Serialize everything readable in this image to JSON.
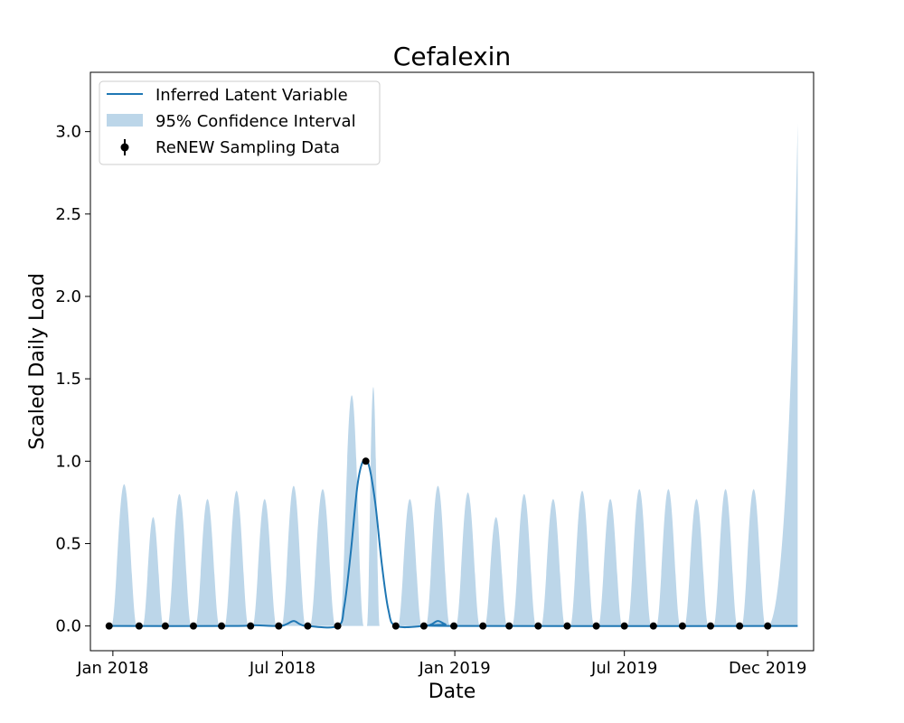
{
  "chart_data": {
    "type": "line",
    "title": "Cefalexin",
    "xlabel": "Date",
    "ylabel": "Scaled Daily Load",
    "x_axis_type": "date",
    "xlim": [
      "2017-12-08",
      "2020-01-19"
    ],
    "ylim": [
      -0.15,
      3.36
    ],
    "x_ticks": [
      {
        "date": "2018-01-01",
        "label": "Jan 2018"
      },
      {
        "date": "2018-07-01",
        "label": "Jul 2018"
      },
      {
        "date": "2019-01-01",
        "label": "Jan 2019"
      },
      {
        "date": "2019-07-01",
        "label": "Jul 2019"
      },
      {
        "date": "2019-12-01",
        "label": "Dec 2019"
      }
    ],
    "y_ticks": [
      {
        "value": 0.0,
        "label": "0.0"
      },
      {
        "value": 0.5,
        "label": "0.5"
      },
      {
        "value": 1.0,
        "label": "1.0"
      },
      {
        "value": 1.5,
        "label": "1.5"
      },
      {
        "value": 2.0,
        "label": "2.0"
      },
      {
        "value": 2.5,
        "label": "2.5"
      },
      {
        "value": 3.0,
        "label": "3.0"
      }
    ],
    "grid": false,
    "legend": {
      "position": "top-left",
      "entries": [
        {
          "label": "Inferred Latent Variable",
          "kind": "line"
        },
        {
          "label": "95% Confidence Interval",
          "kind": "band"
        },
        {
          "label": "ReNEW Sampling Data",
          "kind": "errorbar-point"
        }
      ]
    },
    "colors": {
      "line": "#1f77b4",
      "band": "#bcd6e9",
      "points": "#000000"
    },
    "series": [
      {
        "name": "ReNEW Sampling Data",
        "points": [
          [
            "2017-12-28",
            0
          ],
          [
            "2018-01-29",
            0
          ],
          [
            "2018-02-26",
            0
          ],
          [
            "2018-03-28",
            0
          ],
          [
            "2018-04-27",
            0
          ],
          [
            "2018-05-28",
            0
          ],
          [
            "2018-06-27",
            0
          ],
          [
            "2018-07-28",
            0
          ],
          [
            "2018-08-29",
            0
          ],
          [
            "2018-09-28",
            1.0
          ],
          [
            "2018-10-30",
            0
          ],
          [
            "2018-11-29",
            0
          ],
          [
            "2018-12-31",
            0
          ],
          [
            "2019-01-31",
            0
          ],
          [
            "2019-02-28",
            0
          ],
          [
            "2019-03-31",
            0
          ],
          [
            "2019-05-01",
            0
          ],
          [
            "2019-06-01",
            0
          ],
          [
            "2019-07-01",
            0
          ],
          [
            "2019-08-01",
            0
          ],
          [
            "2019-09-01",
            0
          ],
          [
            "2019-10-01",
            0
          ],
          [
            "2019-11-01",
            0
          ],
          [
            "2019-12-01",
            0
          ]
        ]
      },
      {
        "name": "Inferred Latent Variable",
        "points": [
          [
            "2017-12-28",
            0
          ],
          [
            "2018-05-10",
            0
          ],
          [
            "2018-05-28",
            0.005
          ],
          [
            "2018-06-27",
            0
          ],
          [
            "2018-07-05",
            0.01
          ],
          [
            "2018-07-13",
            0.03
          ],
          [
            "2018-07-20",
            0.01
          ],
          [
            "2018-07-28",
            0
          ],
          [
            "2018-08-29",
            0
          ],
          [
            "2018-09-05",
            0.12
          ],
          [
            "2018-09-12",
            0.45
          ],
          [
            "2018-09-19",
            0.85
          ],
          [
            "2018-09-25",
            1.0
          ],
          [
            "2018-10-01",
            0.98
          ],
          [
            "2018-10-08",
            0.75
          ],
          [
            "2018-10-15",
            0.38
          ],
          [
            "2018-10-22",
            0.1
          ],
          [
            "2018-10-30",
            0
          ],
          [
            "2018-11-29",
            0
          ],
          [
            "2018-12-07",
            0.01
          ],
          [
            "2018-12-14",
            0.03
          ],
          [
            "2018-12-22",
            0.01
          ],
          [
            "2018-12-31",
            0
          ],
          [
            "2020-01-02",
            0
          ]
        ]
      },
      {
        "name": "95% Confidence Interval",
        "upper_peaks": [
          [
            "2018-01-13",
            0.86
          ],
          [
            "2018-02-13",
            0.66
          ],
          [
            "2018-03-13",
            0.8
          ],
          [
            "2018-04-12",
            0.77
          ],
          [
            "2018-05-13",
            0.82
          ],
          [
            "2018-06-12",
            0.77
          ],
          [
            "2018-07-13",
            0.85
          ],
          [
            "2018-08-13",
            0.83
          ],
          [
            "2018-09-13",
            1.4
          ],
          [
            "2018-10-06",
            1.45
          ],
          [
            "2018-11-14",
            0.77
          ],
          [
            "2018-12-14",
            0.85
          ],
          [
            "2019-01-15",
            0.81
          ],
          [
            "2019-02-14",
            0.66
          ],
          [
            "2019-03-16",
            0.8
          ],
          [
            "2019-04-16",
            0.77
          ],
          [
            "2019-05-17",
            0.82
          ],
          [
            "2019-06-16",
            0.77
          ],
          [
            "2019-07-17",
            0.83
          ],
          [
            "2019-08-17",
            0.83
          ],
          [
            "2019-09-16",
            0.77
          ],
          [
            "2019-10-17",
            0.83
          ],
          [
            "2019-11-16",
            0.83
          ]
        ],
        "end_rise": [
          [
            "2019-12-01",
            0
          ],
          [
            "2020-01-02",
            3.05
          ]
        ]
      }
    ]
  }
}
